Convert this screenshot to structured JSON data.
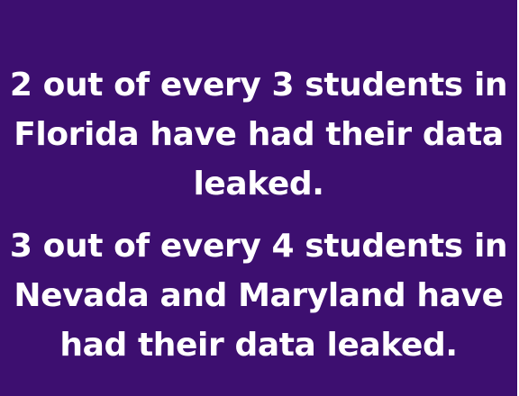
{
  "colors": {
    "background": "#3d0f70",
    "text": "#ffffff"
  },
  "statements": [
    "2 out of every 3 students in Florida have had their data leaked.",
    "3 out of every 4 students in Nevada and Maryland have had their data leaked."
  ]
}
